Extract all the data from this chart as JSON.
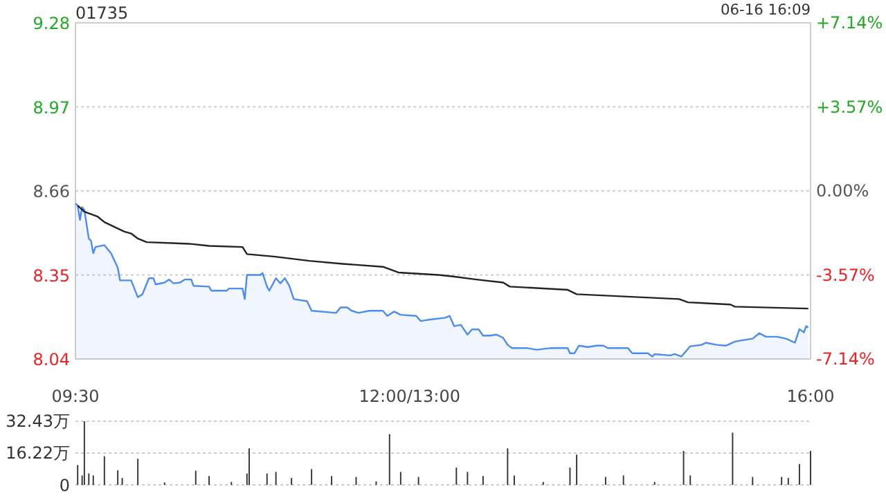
{
  "chart_data": {
    "type": "line",
    "title": "01735",
    "annotations": [
      "06-16 16:09"
    ],
    "categories": [
      "09:30",
      null,
      null,
      null,
      null,
      null,
      null,
      null,
      null,
      null,
      null,
      null,
      null,
      null,
      null,
      null,
      null,
      null,
      null,
      null,
      null,
      null,
      null,
      null,
      null,
      null,
      null,
      null,
      null,
      null,
      null,
      null,
      null,
      null,
      null,
      null,
      null,
      null,
      null,
      null,
      null,
      null,
      null,
      null,
      null,
      null,
      null,
      null,
      null,
      null,
      null,
      null,
      null,
      null,
      null,
      null,
      null,
      null,
      null,
      null,
      null,
      null,
      null,
      null,
      null,
      null,
      null,
      null,
      null,
      null,
      null,
      null,
      null,
      null,
      null,
      null,
      null,
      null,
      null,
      null,
      null,
      null,
      null,
      null,
      null,
      null,
      null,
      null,
      null,
      null,
      null,
      null,
      null,
      null,
      null,
      null,
      null,
      null,
      null,
      null,
      null,
      null,
      null,
      null,
      null,
      null,
      null,
      null,
      null,
      null,
      null,
      null,
      null,
      null,
      null,
      null,
      null,
      null,
      null,
      null,
      null,
      null,
      null,
      null,
      null,
      null,
      null,
      null,
      null,
      null,
      null,
      null,
      null,
      null,
      null,
      null,
      null,
      null,
      null,
      null,
      null,
      null,
      null,
      null,
      null,
      null,
      null,
      null,
      null,
      null,
      "12:00/13:00",
      null,
      null,
      null,
      null,
      null,
      null,
      null,
      null,
      null,
      null,
      null,
      null,
      null,
      null,
      null,
      null,
      null,
      null,
      null,
      null,
      null,
      null,
      null,
      null,
      null,
      null,
      null,
      null,
      null,
      null,
      null,
      null,
      null,
      null,
      null,
      null,
      null,
      null,
      null,
      null,
      null,
      null,
      null,
      null,
      null,
      null,
      null,
      null,
      null,
      null,
      null,
      null,
      null,
      null,
      null,
      null,
      null,
      null,
      null,
      null,
      null,
      null,
      null,
      null,
      null,
      null,
      null,
      null,
      null,
      null,
      null,
      null,
      null,
      null,
      null,
      null,
      null,
      null,
      null,
      null,
      null,
      null,
      null,
      null,
      null,
      null,
      null,
      null,
      null,
      null,
      null,
      null,
      null,
      null,
      null,
      null,
      null,
      null,
      null,
      null,
      null,
      null,
      null,
      null,
      null,
      null,
      null,
      null,
      null,
      null,
      null,
      null,
      null,
      null,
      null,
      null,
      null,
      null,
      null,
      null,
      null,
      null,
      null,
      null,
      null,
      null,
      null,
      null,
      null,
      null,
      null,
      null,
      null,
      null,
      null,
      null,
      null,
      null,
      null,
      null,
      null,
      null,
      null,
      null,
      null,
      null,
      null,
      null,
      null,
      null,
      null,
      null,
      null,
      null,
      null,
      null,
      null,
      null,
      null,
      null,
      null,
      null,
      null,
      null,
      null,
      null,
      null,
      null,
      null,
      null,
      null,
      null,
      null,
      null,
      null,
      null,
      null,
      null,
      null,
      "16:00"
    ],
    "series": [
      {
        "type": "area",
        "color": "#4a8cf0",
        "values": [
          8.614,
          8.606,
          8.553,
          8.6,
          8.59,
          null,
          8.484,
          8.476,
          8.43,
          8.453,
          null,
          null,
          null,
          8.46,
          null,
          null,
          8.43,
          null,
          null,
          8.376,
          8.33,
          null,
          null,
          null,
          null,
          8.33,
          null,
          null,
          8.268,
          null,
          8.278,
          null,
          null,
          8.338,
          null,
          8.338,
          8.315,
          null,
          null,
          null,
          8.322,
          null,
          8.333,
          null,
          8.319,
          null,
          null,
          8.322,
          null,
          8.333,
          null,
          null,
          8.333,
          8.31,
          null,
          null,
          null,
          null,
          null,
          null,
          8.307,
          8.292,
          null,
          null,
          null,
          null,
          null,
          null,
          8.292,
          8.3,
          null,
          null,
          null,
          null,
          null,
          8.3,
          8.261,
          8.35,
          null,
          null,
          null,
          null,
          null,
          8.35,
          8.357,
          null,
          8.307,
          8.292,
          null,
          null,
          8.338,
          null,
          8.319,
          null,
          8.338,
          null,
          8.31,
          null,
          8.261,
          null,
          null,
          null,
          null,
          null,
          8.253,
          null,
          8.218,
          null,
          null,
          null,
          null,
          null,
          null,
          null,
          null,
          null,
          null,
          8.21,
          null,
          8.23,
          null,
          null,
          8.23,
          null,
          8.218,
          null,
          null,
          8.21,
          null,
          null,
          null,
          null,
          8.218,
          null,
          null,
          null,
          null,
          null,
          8.218,
          null,
          8.199,
          null,
          null,
          8.215,
          null,
          null,
          8.203,
          null,
          null,
          null,
          null,
          null,
          null,
          8.199,
          null,
          8.18,
          null,
          null,
          8.184,
          null,
          null,
          null,
          null,
          null,
          null,
          null,
          8.192,
          null,
          8.199,
          null,
          8.161,
          null,
          null,
          8.166,
          null,
          null,
          8.13,
          null,
          8.149,
          null,
          null,
          8.149,
          null,
          8.126,
          null,
          null,
          8.126,
          null,
          null,
          8.13,
          null,
          null,
          8.118,
          null,
          8.092,
          null,
          8.08,
          null,
          null,
          null,
          null,
          null,
          null,
          8.08,
          null,
          null,
          null,
          8.074,
          null,
          null,
          null,
          null,
          null,
          8.08,
          null,
          null,
          null,
          null,
          null,
          null,
          null,
          8.08,
          8.061,
          null,
          8.061,
          null,
          8.089,
          null,
          null,
          null,
          8.084,
          null,
          null,
          null,
          8.089,
          null,
          null,
          8.089,
          null,
          8.08,
          null,
          null,
          null,
          null,
          null,
          null,
          null,
          null,
          8.08,
          null,
          8.061,
          null,
          null,
          null,
          null,
          null,
          null,
          8.061,
          null,
          8.049,
          8.058,
          null,
          null,
          null,
          null,
          null,
          null,
          8.053,
          null,
          8.058,
          null,
          null,
          8.049,
          null,
          null,
          null,
          8.087,
          null,
          null,
          null,
          null,
          8.092,
          null,
          8.1,
          null,
          null,
          null,
          null,
          8.092,
          null,
          null,
          null,
          8.089,
          null,
          null,
          null,
          8.104,
          null,
          null,
          null,
          8.11,
          null,
          null,
          null,
          8.115,
          null,
          null,
          8.135,
          null,
          null,
          8.122,
          null,
          null,
          null,
          null,
          8.122,
          null,
          null,
          null,
          8.115,
          null,
          null,
          null,
          8.1,
          null,
          8.15,
          null,
          8.138,
          8.161,
          8.156,
          null
        ]
      },
      {
        "color": "#222222",
        "values": [
          null,
          8.606,
          null,
          null,
          8.583,
          null,
          null,
          null,
          null,
          null,
          8.565,
          null,
          null,
          8.545,
          null,
          null,
          null,
          null,
          8.525,
          null,
          null,
          null,
          8.51,
          null,
          null,
          8.503,
          null,
          null,
          8.484,
          null,
          null,
          null,
          8.471,
          null,
          null,
          null,
          null,
          null,
          null,
          null,
          null,
          null,
          null,
          null,
          null,
          null,
          null,
          null,
          null,
          null,
          null,
          8.465,
          null,
          null,
          null,
          null,
          null,
          null,
          null,
          null,
          8.457,
          null,
          null,
          null,
          null,
          null,
          null,
          null,
          null,
          null,
          null,
          null,
          null,
          null,
          null,
          8.453,
          null,
          8.427,
          null,
          null,
          null,
          null,
          null,
          null,
          null,
          null,
          null,
          null,
          null,
          8.418,
          null,
          null,
          null,
          null,
          null,
          null,
          null,
          null,
          null,
          null,
          null,
          null,
          null,
          null,
          null,
          8.402,
          null,
          null,
          null,
          null,
          null,
          null,
          null,
          null,
          null,
          null,
          null,
          null,
          null,
          null,
          8.391,
          null,
          null,
          null,
          null,
          null,
          null,
          null,
          null,
          null,
          null,
          null,
          null,
          null,
          null,
          null,
          null,
          null,
          8.38,
          null,
          null,
          null,
          null,
          null,
          null,
          8.359,
          null,
          null,
          null,
          null,
          null,
          null,
          null,
          null,
          null,
          null,
          null,
          null,
          null,
          null,
          null,
          null,
          null,
          8.35,
          null,
          null,
          null,
          null,
          null,
          8.345,
          null,
          null,
          null,
          null,
          null,
          null,
          null,
          null,
          null,
          null,
          8.333,
          null,
          null,
          null,
          null,
          null,
          null,
          null,
          null,
          null,
          null,
          null,
          8.322,
          null,
          null,
          8.307,
          null,
          null,
          null,
          null,
          null,
          null,
          null,
          null,
          null,
          null,
          null,
          null,
          null,
          null,
          null,
          null,
          null,
          null,
          null,
          null,
          null,
          null,
          null,
          null,
          null,
          8.295,
          null,
          null,
          null,
          8.279,
          null,
          null,
          null,
          null,
          null,
          null,
          null,
          null,
          null,
          null,
          null,
          null,
          null,
          null,
          null,
          null,
          null,
          null,
          null,
          null,
          null,
          null,
          null,
          null,
          null,
          null,
          null,
          null,
          null,
          null,
          null,
          null,
          null,
          null,
          null,
          null,
          null,
          null,
          null,
          null,
          null,
          null,
          null,
          null,
          null,
          8.261,
          null,
          null,
          null,
          8.249,
          null,
          null,
          null,
          null,
          null,
          null,
          null,
          null,
          null,
          null,
          null,
          null,
          null,
          null,
          null,
          null,
          null,
          null,
          8.241,
          null,
          8.233,
          null,
          null,
          null,
          null,
          null,
          null,
          null,
          null,
          null,
          null,
          null,
          null,
          null,
          null,
          null,
          null,
          null,
          null,
          null,
          null,
          null,
          null,
          null,
          null,
          null,
          null,
          null,
          null,
          null,
          null,
          null,
          null,
          8.226,
          null
        ]
      },
      {
        "type": "bar",
        "axis": "y3",
        "color": "#333333",
        "values": [
          null,
          10.1,
          null,
          4.8,
          32.4,
          null,
          5.8,
          null,
          4.8,
          null,
          null,
          null,
          null,
          14.6,
          null,
          null,
          null,
          null,
          null,
          7.4,
          null,
          3.5,
          null,
          null,
          null,
          null,
          null,
          null,
          13.3,
          null,
          null,
          null,
          null,
          null,
          null,
          null,
          null,
          null,
          null,
          null,
          1.2,
          null,
          null,
          null,
          null,
          null,
          null,
          null,
          null,
          null,
          null,
          null,
          null,
          null,
          7.2,
          null,
          null,
          null,
          null,
          null,
          4.5,
          null,
          null,
          null,
          null,
          null,
          null,
          null,
          null,
          null,
          1.5,
          null,
          null,
          null,
          null,
          null,
          null,
          5.8,
          18.6,
          null,
          null,
          null,
          null,
          null,
          null,
          null,
          5.8,
          null,
          null,
          null,
          6.6,
          null,
          null,
          null,
          null,
          null,
          null,
          3.5,
          null,
          null,
          null,
          null,
          null,
          null,
          null,
          null,
          8,
          null,
          null,
          null,
          null,
          null,
          null,
          null,
          null,
          4.5,
          null,
          null,
          null,
          null,
          null,
          null,
          null,
          null,
          null,
          null,
          4,
          null,
          null,
          null,
          null,
          null,
          null,
          null,
          null,
          1.8,
          null,
          null,
          null,
          null,
          null,
          25.8,
          null,
          null,
          null,
          null,
          6.6,
          null,
          null,
          null,
          null,
          null,
          null,
          null,
          4,
          null,
          null,
          null,
          null,
          null,
          null,
          null,
          null,
          null,
          null,
          null,
          null,
          null,
          null,
          null,
          null,
          8.8,
          null,
          null,
          null,
          null,
          6.6,
          null,
          null,
          null,
          null,
          null,
          null,
          4.5,
          null,
          null,
          null,
          null,
          null,
          null,
          null,
          null,
          null,
          null,
          18.6,
          null,
          null,
          4.8,
          null,
          null,
          null,
          null,
          null,
          null,
          null,
          null,
          null,
          null,
          null,
          null,
          1.5,
          null,
          null,
          null,
          null,
          null,
          null,
          null,
          null,
          null,
          null,
          null,
          8.8,
          null,
          null,
          15.4,
          null,
          null,
          null,
          null,
          null,
          null,
          null,
          null,
          null,
          null,
          null,
          null,
          4,
          null,
          null,
          null,
          null,
          null,
          null,
          null,
          4.8,
          null,
          null,
          null,
          null,
          null,
          null,
          null,
          null,
          null,
          null,
          null,
          null,
          null,
          1.5,
          null,
          null,
          null,
          null,
          null,
          null,
          null,
          null,
          null,
          null,
          null,
          null,
          17.3,
          null,
          null,
          4.8,
          null,
          null,
          null,
          null,
          null,
          null,
          null,
          null,
          null,
          null,
          null,
          null,
          null,
          null,
          null,
          null,
          null,
          null,
          26.6,
          null,
          null,
          null,
          null,
          null,
          null,
          null,
          null,
          4,
          null,
          null,
          null,
          null,
          null,
          null,
          null,
          null,
          null,
          null,
          null,
          null,
          4,
          null,
          null,
          3.5,
          null,
          null,
          null,
          null,
          10.6,
          null,
          null,
          null,
          null,
          17.3
        ]
      }
    ],
    "ylim": [
      8.04,
      9.28
    ],
    "yticks": [
      8.04,
      8.35,
      8.66,
      8.97,
      9.28
    ],
    "y2lim": [
      -7.14,
      7.14
    ],
    "y2ticks": [
      {
        "value": -7.14,
        "label": "-7.14%"
      },
      {
        "value": -3.57,
        "label": "-3.57%"
      },
      {
        "value": 0,
        "label": "0.00%"
      },
      {
        "value": 3.57,
        "label": "+3.57%"
      },
      {
        "value": 7.14,
        "label": "+7.14%"
      }
    ],
    "y3lim": [
      0,
      32.43
    ],
    "y3ticks": [
      0,
      {
        "value": 16.22,
        "label": "16.22万"
      },
      {
        "value": 32.43,
        "label": "32.43万"
      }
    ],
    "grid": "y"
  }
}
